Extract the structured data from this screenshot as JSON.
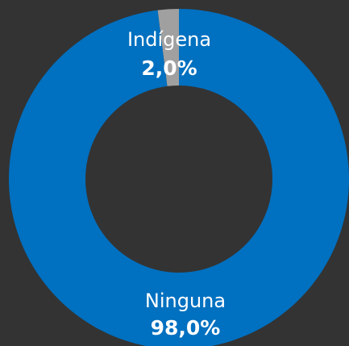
{
  "chart_data": {
    "type": "pie",
    "categories": [
      "Indígena",
      "Ninguna"
    ],
    "values": [
      2,
      98
    ],
    "value_labels": [
      "2,0%",
      "98,0%"
    ],
    "colors": [
      "#a0a0a0",
      "#0070c0"
    ]
  }
}
